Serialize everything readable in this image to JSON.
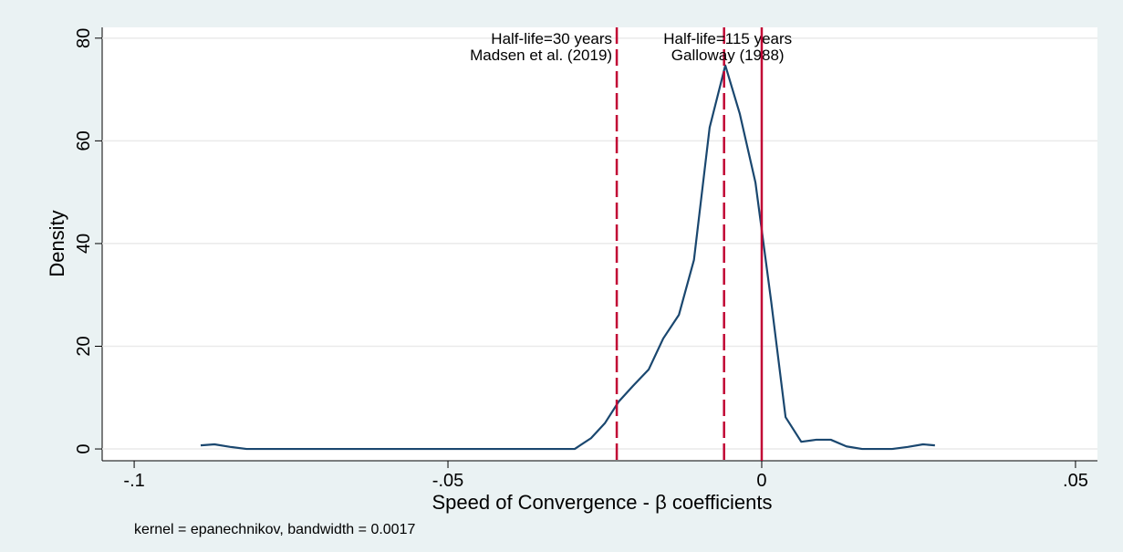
{
  "chart_data": {
    "type": "line",
    "xlabel": "Speed of Convergence - β coefficients",
    "ylabel": "Density",
    "note": "kernel = epanechnikov, bandwidth = 0.0017",
    "x": [
      -0.0894,
      -0.0872,
      -0.0847,
      -0.0821,
      -0.07,
      -0.06,
      -0.05,
      -0.04,
      -0.0298,
      -0.0272,
      -0.025,
      -0.0228,
      -0.0205,
      -0.018,
      -0.0157,
      -0.0132,
      -0.0108,
      -0.0083,
      -0.0058,
      -0.0035,
      -0.001,
      0.0015,
      0.0038,
      0.0063,
      0.0087,
      0.011,
      0.0135,
      0.016,
      0.0208,
      0.0233,
      0.0257,
      0.0276
    ],
    "series": [
      {
        "color": "#1a476f",
        "values": [
          0.7,
          0.9,
          0.4,
          0,
          0,
          0,
          0,
          0,
          0,
          2.1,
          5.0,
          9.2,
          12.3,
          15.5,
          21.5,
          26.1,
          36.8,
          62.6,
          74.7,
          65.3,
          51.9,
          28.8,
          6.2,
          1.4,
          1.8,
          1.8,
          0.5,
          0,
          0,
          0.4,
          0.9,
          0.7
        ]
      }
    ],
    "reference_lines": [
      {
        "x": -0.0231,
        "dashed": true,
        "color": "#c10534",
        "label": [
          "Half-life=30 years",
          "Madsen et al. (2019)"
        ]
      },
      {
        "x": -0.006,
        "dashed": true,
        "color": "#c10534",
        "label": [
          "Half-life=115 years",
          "Galloway (1988)"
        ]
      },
      {
        "x": 0,
        "dashed": false,
        "color": "#c10534"
      }
    ],
    "xlim": [
      -0.1051,
      0.0535
    ],
    "ylim": [
      -2.3,
      82.1
    ],
    "xticks": [
      {
        "value": -0.1,
        "label": "-.1"
      },
      {
        "value": -0.05,
        "label": "-.05"
      },
      {
        "value": 0,
        "label": "0"
      },
      {
        "value": 0.05,
        "label": ".05"
      }
    ],
    "yticks": [
      0,
      20,
      40,
      60,
      80
    ],
    "grid": true
  }
}
